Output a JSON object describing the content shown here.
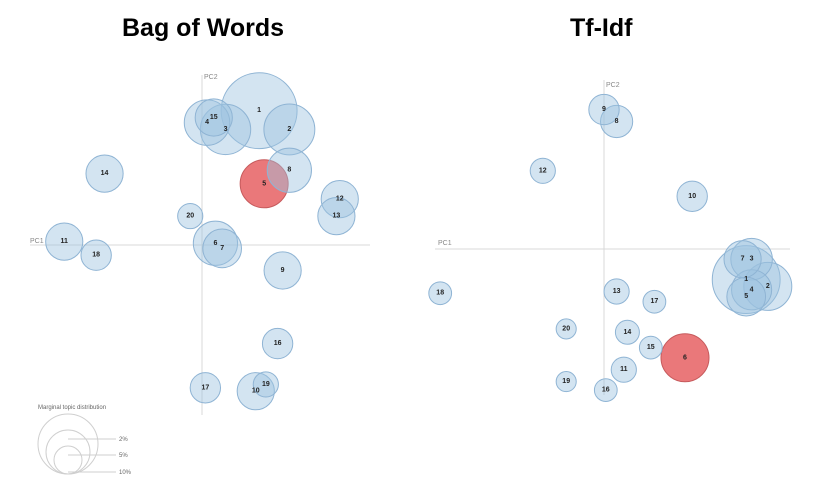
{
  "chart_data": [
    {
      "type": "scatter",
      "title": "Bag of Words",
      "xlabel": "PC1",
      "ylabel": "PC2",
      "xlim": [
        -1,
        1
      ],
      "ylim": [
        -1,
        1
      ],
      "grid": false,
      "highlight_color": "#e8696b",
      "bubble_color": "#9ec3e0",
      "points": [
        {
          "label": "1",
          "x": 0.34,
          "y": 0.79,
          "size": 10.0,
          "highlight": false
        },
        {
          "label": "2",
          "x": 0.52,
          "y": 0.68,
          "size": 4.5,
          "highlight": false
        },
        {
          "label": "3",
          "x": 0.14,
          "y": 0.68,
          "size": 4.4,
          "highlight": false
        },
        {
          "label": "4",
          "x": 0.03,
          "y": 0.72,
          "size": 3.6,
          "highlight": false
        },
        {
          "label": "15",
          "x": 0.07,
          "y": 0.75,
          "size": 2.4,
          "highlight": false
        },
        {
          "label": "5",
          "x": 0.37,
          "y": 0.36,
          "size": 4.0,
          "highlight": true
        },
        {
          "label": "8",
          "x": 0.52,
          "y": 0.44,
          "size": 3.4,
          "highlight": false
        },
        {
          "label": "12",
          "x": 0.82,
          "y": 0.27,
          "size": 2.4,
          "highlight": false
        },
        {
          "label": "13",
          "x": 0.8,
          "y": 0.17,
          "size": 2.4,
          "highlight": false
        },
        {
          "label": "14",
          "x": -0.58,
          "y": 0.42,
          "size": 2.4,
          "highlight": false
        },
        {
          "label": "20",
          "x": -0.07,
          "y": 0.17,
          "size": 1.1,
          "highlight": false
        },
        {
          "label": "11",
          "x": -0.82,
          "y": 0.02,
          "size": 2.4,
          "highlight": false
        },
        {
          "label": "18",
          "x": -0.63,
          "y": -0.06,
          "size": 1.6,
          "highlight": false
        },
        {
          "label": "6",
          "x": 0.08,
          "y": 0.01,
          "size": 3.4,
          "highlight": false
        },
        {
          "label": "7",
          "x": 0.12,
          "y": -0.02,
          "size": 2.6,
          "highlight": false
        },
        {
          "label": "9",
          "x": 0.48,
          "y": -0.15,
          "size": 2.4,
          "highlight": false
        },
        {
          "label": "16",
          "x": 0.45,
          "y": -0.58,
          "size": 1.6,
          "highlight": false
        },
        {
          "label": "17",
          "x": 0.02,
          "y": -0.84,
          "size": 1.6,
          "highlight": false
        },
        {
          "label": "10",
          "x": 0.32,
          "y": -0.86,
          "size": 2.4,
          "highlight": false
        },
        {
          "label": "19",
          "x": 0.38,
          "y": -0.82,
          "size": 1.1,
          "highlight": false
        }
      ],
      "legend": {
        "title": "Marginal topic distribution",
        "entries": [
          "2%",
          "5%",
          "10%"
        ]
      }
    },
    {
      "type": "scatter",
      "title": "Tf-Idf",
      "xlabel": "PC1",
      "ylabel": "PC2",
      "xlim": [
        -1,
        1
      ],
      "ylim": [
        -1,
        1
      ],
      "grid": false,
      "highlight_color": "#e8696b",
      "bubble_color": "#9ec3e0",
      "points": [
        {
          "label": "9",
          "x": 0.0,
          "y": 0.82,
          "size": 1.6,
          "highlight": false
        },
        {
          "label": "8",
          "x": 0.07,
          "y": 0.75,
          "size": 1.8,
          "highlight": false
        },
        {
          "label": "12",
          "x": -0.34,
          "y": 0.46,
          "size": 1.1,
          "highlight": false
        },
        {
          "label": "10",
          "x": 0.49,
          "y": 0.31,
          "size": 1.6,
          "highlight": false
        },
        {
          "label": "7",
          "x": 0.77,
          "y": -0.06,
          "size": 2.4,
          "highlight": false
        },
        {
          "label": "3",
          "x": 0.82,
          "y": -0.06,
          "size": 3.0,
          "highlight": false
        },
        {
          "label": "1",
          "x": 0.79,
          "y": -0.18,
          "size": 8.0,
          "highlight": false
        },
        {
          "label": "2",
          "x": 0.91,
          "y": -0.22,
          "size": 4.0,
          "highlight": false
        },
        {
          "label": "4",
          "x": 0.82,
          "y": -0.24,
          "size": 2.8,
          "highlight": false
        },
        {
          "label": "5",
          "x": 0.79,
          "y": -0.28,
          "size": 2.6,
          "highlight": false
        },
        {
          "label": "18",
          "x": -0.91,
          "y": -0.26,
          "size": 0.9,
          "highlight": false
        },
        {
          "label": "13",
          "x": 0.07,
          "y": -0.25,
          "size": 1.1,
          "highlight": false
        },
        {
          "label": "17",
          "x": 0.28,
          "y": -0.31,
          "size": 0.9,
          "highlight": false
        },
        {
          "label": "20",
          "x": -0.21,
          "y": -0.47,
          "size": 0.7,
          "highlight": false
        },
        {
          "label": "14",
          "x": 0.13,
          "y": -0.49,
          "size": 1.0,
          "highlight": false
        },
        {
          "label": "15",
          "x": 0.26,
          "y": -0.58,
          "size": 0.9,
          "highlight": false
        },
        {
          "label": "6",
          "x": 0.45,
          "y": -0.64,
          "size": 4.0,
          "highlight": true
        },
        {
          "label": "11",
          "x": 0.11,
          "y": -0.71,
          "size": 1.1,
          "highlight": false
        },
        {
          "label": "19",
          "x": -0.21,
          "y": -0.78,
          "size": 0.7,
          "highlight": false
        },
        {
          "label": "16",
          "x": 0.01,
          "y": -0.83,
          "size": 0.9,
          "highlight": false
        }
      ]
    }
  ]
}
